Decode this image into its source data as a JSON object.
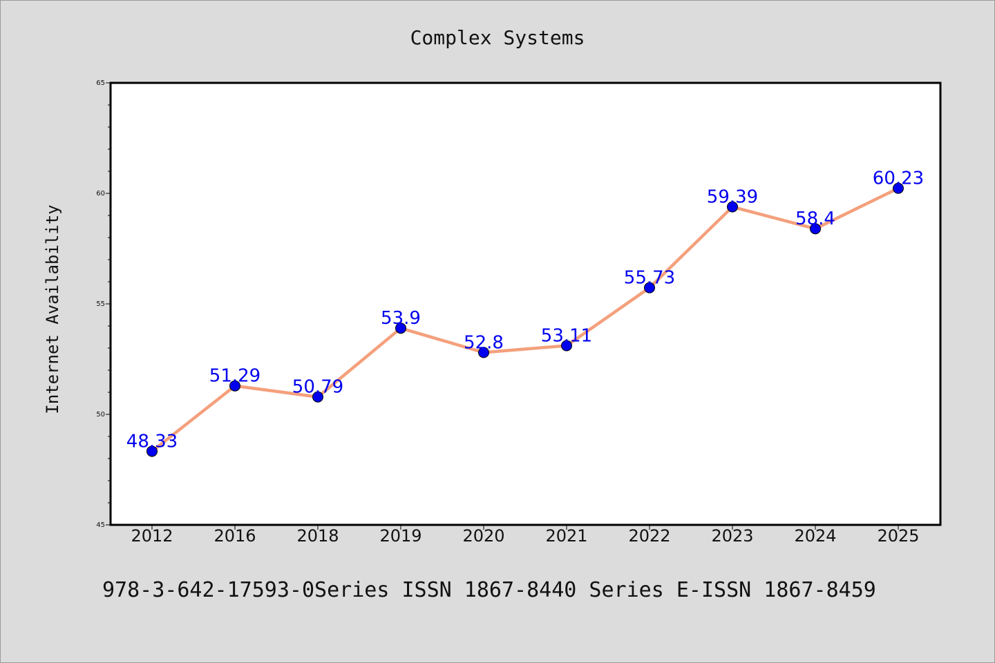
{
  "chart_data": {
    "type": "line",
    "title": "Complex Systems",
    "xlabel": "",
    "ylabel": "Internet Availability",
    "categories": [
      "2012",
      "2016",
      "2018",
      "2019",
      "2020",
      "2021",
      "2022",
      "2023",
      "2024",
      "2025"
    ],
    "series": [
      {
        "values": [
          48.33,
          51.29,
          50.79,
          53.9,
          52.8,
          53.11,
          55.73,
          59.39,
          58.4,
          60.23
        ],
        "labels": [
          "48.33",
          "51.29",
          "50.79",
          "53.9",
          "52.8",
          "53.11",
          "55.73",
          "59.39",
          "58.4",
          "60.23"
        ]
      }
    ],
    "ylim": [
      45,
      65
    ],
    "yticks": [
      "45",
      "50",
      "55",
      "60",
      "65"
    ],
    "grid": false,
    "legend": "none",
    "colors": {
      "line": "#f4a07c",
      "marker": "#0000ee",
      "data_label": "#0000ee",
      "background": "#dcdcdc",
      "plot_background": "#ffffff"
    }
  },
  "footer": {
    "text": "978-3-642-17593-0Series ISSN 1867-8440 Series E-ISSN 1867-8459"
  }
}
